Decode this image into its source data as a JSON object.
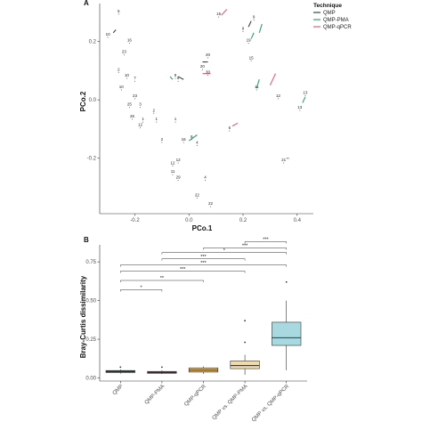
{
  "colors": {
    "QMP": "#2e4d3a",
    "QMP-PMA": "#2fa06f",
    "QMP-qPCR": "#e0607a"
  },
  "chart_data": [
    {
      "type": "scatter",
      "panel_label": "A",
      "title": "",
      "xlabel": "PCo.1",
      "ylabel": "PCo.2",
      "xlim": [
        -0.33,
        0.46
      ],
      "ylim": [
        -0.39,
        0.33
      ],
      "xticks": [
        -0.2,
        0.0,
        0.2,
        0.4
      ],
      "xtick_labels": [
        "-0.2",
        "0.0",
        "0.2",
        "0.4"
      ],
      "yticks": [
        0.2,
        0.0,
        -0.2
      ],
      "ytick_labels": [
        "0.2",
        "0.0",
        "-0.2"
      ],
      "grid": false,
      "legend": {
        "title": "Technique",
        "position": "top-right",
        "entries": [
          "QMP",
          "QMP-PMA",
          "QMP-qPCR"
        ]
      },
      "points": [
        {
          "id": "5",
          "x": -0.26,
          "y": 0.3,
          "seg": []
        },
        {
          "id": "10",
          "x": -0.3,
          "y": 0.22,
          "seg": [
            [
              -0.28,
              0.23,
              -0.27,
              0.24,
              "QMP"
            ]
          ]
        },
        {
          "id": "16",
          "x": -0.22,
          "y": 0.2,
          "seg": []
        },
        {
          "id": "23",
          "x": -0.24,
          "y": 0.16,
          "seg": []
        },
        {
          "id": "2",
          "x": -0.26,
          "y": 0.1,
          "seg": []
        },
        {
          "id": "10",
          "x": -0.23,
          "y": 0.08,
          "seg": []
        },
        {
          "id": "7",
          "x": -0.2,
          "y": 0.07,
          "seg": []
        },
        {
          "id": "10",
          "x": -0.25,
          "y": 0.04,
          "seg": []
        },
        {
          "id": "23",
          "x": -0.2,
          "y": 0.01,
          "seg": []
        },
        {
          "id": "25",
          "x": -0.22,
          "y": -0.02,
          "seg": []
        },
        {
          "id": "3",
          "x": -0.18,
          "y": -0.02,
          "seg": []
        },
        {
          "id": "2",
          "x": -0.13,
          "y": -0.04,
          "seg": []
        },
        {
          "id": "26",
          "x": -0.21,
          "y": -0.06,
          "seg": []
        },
        {
          "id": "1",
          "x": -0.17,
          "y": -0.07,
          "seg": []
        },
        {
          "id": "12",
          "x": -0.18,
          "y": -0.09,
          "seg": []
        },
        {
          "id": "1",
          "x": -0.12,
          "y": -0.07,
          "seg": []
        },
        {
          "id": "1",
          "x": -0.05,
          "y": -0.07,
          "seg": []
        },
        {
          "id": "2",
          "x": -0.1,
          "y": -0.14,
          "seg": []
        },
        {
          "id": "16",
          "x": -0.02,
          "y": -0.14,
          "seg": [
            [
              0.0,
              -0.14,
              0.03,
              -0.12,
              "QMP-PMA"
            ]
          ]
        },
        {
          "id": "4",
          "x": 0.03,
          "y": -0.15,
          "seg": []
        },
        {
          "id": "8",
          "x": 0.01,
          "y": -0.13,
          "seg": []
        },
        {
          "id": "12",
          "x": -0.06,
          "y": -0.22,
          "seg": []
        },
        {
          "id": "11",
          "x": -0.06,
          "y": -0.25,
          "seg": []
        },
        {
          "id": "29",
          "x": -0.04,
          "y": -0.27,
          "seg": []
        },
        {
          "id": "4",
          "x": 0.06,
          "y": -0.27,
          "seg": []
        },
        {
          "id": "22",
          "x": 0.03,
          "y": -0.33,
          "seg": []
        },
        {
          "id": "22",
          "x": 0.08,
          "y": -0.36,
          "seg": []
        },
        {
          "id": "12",
          "x": -0.04,
          "y": -0.21,
          "seg": []
        },
        {
          "id": "15",
          "x": 0.11,
          "y": 0.29,
          "seg": [
            [
              0.12,
              0.29,
              0.14,
              0.31,
              "QMP-qPCR"
            ]
          ]
        },
        {
          "id": "9",
          "x": 0.24,
          "y": 0.28,
          "seg": [
            [
              0.22,
              0.25,
              0.23,
              0.27,
              "QMP"
            ]
          ]
        },
        {
          "id": "9",
          "x": 0.2,
          "y": 0.24,
          "seg": [
            [
              0.26,
              0.23,
              0.27,
              0.26,
              "QMP-PMA"
            ]
          ]
        },
        {
          "id": "19",
          "x": 0.22,
          "y": 0.2,
          "seg": [
            [
              0.23,
              0.21,
              0.24,
              0.23,
              "QMP-PMA"
            ]
          ]
        },
        {
          "id": "15",
          "x": 0.23,
          "y": 0.14,
          "seg": []
        },
        {
          "id": "20",
          "x": 0.07,
          "y": 0.15,
          "seg": []
        },
        {
          "id": "20",
          "x": 0.05,
          "y": 0.11,
          "seg": [
            [
              0.05,
              0.13,
              0.07,
              0.13,
              "QMP"
            ]
          ]
        },
        {
          "id": "30",
          "x": 0.07,
          "y": 0.09,
          "seg": [
            [
              0.05,
              0.09,
              0.08,
              0.09,
              "QMP-qPCR"
            ]
          ]
        },
        {
          "id": "9",
          "x": -0.05,
          "y": 0.08,
          "seg": [
            [
              -0.07,
              0.08,
              -0.06,
              0.07,
              "QMP-PMA"
            ]
          ]
        },
        {
          "id": "8",
          "x": -0.04,
          "y": 0.07,
          "seg": [
            [
              -0.04,
              0.08,
              -0.02,
              0.07,
              "QMP"
            ]
          ]
        },
        {
          "id": "11",
          "x": 0.25,
          "y": 0.04,
          "seg": [
            [
              0.25,
              0.04,
              0.26,
              0.07,
              "QMP-PMA"
            ]
          ]
        },
        {
          "id": "13",
          "x": 0.43,
          "y": 0.02,
          "seg": []
        },
        {
          "id": "12",
          "x": 0.33,
          "y": 0.01,
          "seg": [
            [
              0.3,
              0.05,
              0.32,
              0.09,
              "QMP-qPCR"
            ]
          ]
        },
        {
          "id": "13",
          "x": 0.41,
          "y": -0.03,
          "seg": [
            [
              0.42,
              -0.01,
              0.43,
              0.01,
              "QMP-PMA"
            ]
          ]
        },
        {
          "id": "6",
          "x": 0.15,
          "y": -0.1,
          "seg": [
            [
              0.16,
              -0.09,
              0.18,
              -0.08,
              "QMP-qPCR"
            ]
          ]
        },
        {
          "id": "21",
          "x": 0.35,
          "y": -0.21,
          "seg": [
            [
              0.36,
              -0.2,
              0.37,
              -0.2,
              "QMP-qPCR"
            ]
          ]
        }
      ]
    },
    {
      "type": "box",
      "panel_label": "B",
      "title": "",
      "xlabel": "",
      "ylabel": "Bray-Curtis dissimilarity",
      "ylim": [
        -0.02,
        0.86
      ],
      "yticks": [
        0.0,
        0.25,
        0.5,
        0.75
      ],
      "ytick_labels": [
        "0.00",
        "0.25",
        "0.50",
        "0.75"
      ],
      "categories": [
        "QMP",
        "QMP-PMA",
        "QMP-qPCR",
        "QMP vs. QMP-PMA",
        "QMP vs. QMP-qPCR"
      ],
      "boxes": [
        {
          "category": "QMP",
          "q1": 0.035,
          "median": 0.042,
          "q3": 0.048,
          "whisker_low": 0.028,
          "whisker_high": 0.055,
          "outliers": [
            0.07
          ],
          "fill": "#2e5a3f"
        },
        {
          "category": "QMP-PMA",
          "q1": 0.03,
          "median": 0.036,
          "q3": 0.042,
          "whisker_low": 0.025,
          "whisker_high": 0.05,
          "outliers": [
            0.07
          ],
          "fill": "#7a3a55"
        },
        {
          "category": "QMP-qPCR",
          "q1": 0.038,
          "median": 0.05,
          "q3": 0.065,
          "whisker_low": 0.025,
          "whisker_high": 0.075,
          "outliers": [],
          "fill": "#e8b560"
        },
        {
          "category": "QMP vs. QMP-PMA",
          "q1": 0.06,
          "median": 0.08,
          "q3": 0.11,
          "whisker_low": 0.02,
          "whisker_high": 0.15,
          "outliers": [
            0.23,
            0.37
          ],
          "fill": "#f2d9a8"
        },
        {
          "category": "QMP vs. QMP-qPCR",
          "q1": 0.21,
          "median": 0.26,
          "q3": 0.36,
          "whisker_low": 0.05,
          "whisker_high": 0.5,
          "outliers": [
            0.62
          ],
          "fill": "#a8d8e0"
        }
      ],
      "significance": [
        {
          "from": 0,
          "to": 3,
          "y": 0.69,
          "label": "***"
        },
        {
          "from": 0,
          "to": 4,
          "y": 0.73,
          "label": "***"
        },
        {
          "from": 1,
          "to": 3,
          "y": 0.77,
          "label": "***"
        },
        {
          "from": 1,
          "to": 4,
          "y": 0.81,
          "label": "*"
        },
        {
          "from": 2,
          "to": 4,
          "y": 0.84,
          "label": "***"
        },
        {
          "from": 3,
          "to": 4,
          "y": 0.88,
          "label": "***"
        },
        {
          "from": 0,
          "to": 2,
          "y": 0.63,
          "label": "**"
        },
        {
          "from": 0,
          "to": 1,
          "y": 0.57,
          "label": "*"
        }
      ]
    }
  ]
}
